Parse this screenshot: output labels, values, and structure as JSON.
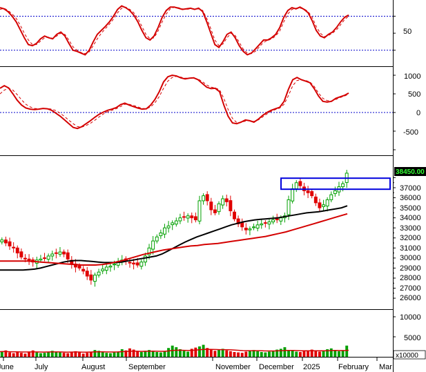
{
  "chart_data": [
    {
      "panel": "stochastic",
      "type": "line",
      "yticks": [
        50
      ],
      "guide_lines": [
        80,
        20
      ],
      "series": [
        {
          "color": "#d40000",
          "style": "solid",
          "values": [
            95,
            93,
            88,
            80,
            70,
            56,
            42,
            30,
            28,
            32,
            40,
            45,
            42,
            40,
            48,
            52,
            45,
            32,
            20,
            18,
            15,
            12,
            20,
            35,
            48,
            55,
            62,
            70,
            80,
            92,
            98,
            95,
            90,
            82,
            70,
            55,
            42,
            38,
            45,
            60,
            78,
            90,
            96,
            96,
            94,
            92,
            93,
            94,
            92,
            94,
            88,
            70,
            50,
            30,
            25,
            35,
            48,
            52,
            42,
            28,
            18,
            12,
            15,
            22,
            30,
            38,
            38,
            42,
            48,
            60,
            78,
            90,
            95,
            93,
            96,
            92,
            86,
            72,
            55,
            45,
            42,
            48,
            52,
            60,
            70,
            78,
            82
          ]
        },
        {
          "color": "#d40000",
          "style": "dashed",
          "values": [
            92,
            94,
            90,
            84,
            76,
            64,
            50,
            38,
            30,
            30,
            36,
            42,
            43,
            41,
            45,
            50,
            48,
            38,
            26,
            20,
            16,
            14,
            17,
            28,
            40,
            50,
            58,
            66,
            75,
            86,
            94,
            96,
            92,
            86,
            76,
            62,
            48,
            40,
            42,
            54,
            70,
            84,
            93,
            96,
            95,
            93,
            92,
            93,
            93,
            93,
            90,
            76,
            58,
            38,
            28,
            31,
            42,
            50,
            46,
            34,
            22,
            15,
            14,
            18,
            26,
            34,
            37,
            40,
            45,
            54,
            70,
            84,
            92,
            94,
            94,
            93,
            88,
            78,
            62,
            50,
            44,
            46,
            50,
            56,
            65,
            74,
            80
          ]
        }
      ]
    },
    {
      "panel": "macd",
      "type": "line",
      "yticks": [
        1000,
        500,
        0,
        -500
      ],
      "guide_lines": [
        0
      ],
      "series": [
        {
          "color": "#d40000",
          "style": "solid",
          "values": [
            650,
            720,
            660,
            500,
            330,
            200,
            120,
            90,
            80,
            90,
            110,
            100,
            60,
            -20,
            -100,
            -200,
            -300,
            -400,
            -430,
            -380,
            -300,
            -220,
            -130,
            -50,
            10,
            60,
            90,
            130,
            210,
            250,
            200,
            160,
            120,
            90,
            100,
            200,
            350,
            560,
            820,
            960,
            1000,
            980,
            930,
            900,
            920,
            930,
            880,
            780,
            680,
            640,
            650,
            560,
            200,
            -100,
            -280,
            -300,
            -260,
            -200,
            -220,
            -260,
            -180,
            -80,
            0,
            60,
            100,
            140,
            300,
            620,
            880,
            940,
            880,
            840,
            800,
            640,
            440,
            300,
            280,
            300,
            380,
            420,
            460,
            520
          ]
        },
        {
          "color": "#d40000",
          "style": "dashed",
          "values": [
            500,
            600,
            650,
            600,
            480,
            340,
            220,
            150,
            110,
            100,
            105,
            105,
            90,
            50,
            -20,
            -110,
            -210,
            -300,
            -380,
            -390,
            -350,
            -290,
            -210,
            -120,
            -40,
            20,
            60,
            100,
            160,
            220,
            220,
            190,
            150,
            110,
            100,
            150,
            260,
            430,
            650,
            840,
            940,
            970,
            950,
            920,
            920,
            925,
            900,
            830,
            740,
            680,
            660,
            610,
            380,
            80,
            -160,
            -270,
            -270,
            -230,
            -220,
            -240,
            -200,
            -120,
            -40,
            30,
            80,
            120,
            220,
            450,
            720,
            860,
            880,
            860,
            820,
            700,
            520,
            380,
            320,
            310,
            350,
            400,
            440,
            490
          ]
        }
      ]
    },
    {
      "panel": "price",
      "type": "candlestick",
      "yticks": [
        37000,
        36000,
        35000,
        34000,
        33000,
        32000,
        31000,
        30000,
        29000,
        28000,
        27000,
        26000
      ],
      "last_price_label": "38450.00",
      "last_price": 38450,
      "close": [
        31800,
        31500,
        31200,
        31000,
        30500,
        30100,
        29900,
        29700,
        29600,
        29800,
        29900,
        30000,
        30200,
        30400,
        30500,
        30600,
        30400,
        29900,
        29400,
        29100,
        29000,
        28700,
        28200,
        27800,
        28300,
        28600,
        28900,
        29100,
        29200,
        29400,
        29600,
        29800,
        29700,
        29500,
        29400,
        29300,
        29600,
        30200,
        31000,
        31700,
        32100,
        32500,
        33000,
        33200,
        33500,
        33700,
        34000,
        34100,
        34200,
        34000,
        33800,
        35700,
        36200,
        35700,
        34800,
        34500,
        35400,
        35900,
        35600,
        34700,
        33900,
        33400,
        33100,
        32800,
        32900,
        33100,
        33300,
        33400,
        33500,
        33600,
        33800,
        33800,
        34000,
        34200,
        35800,
        36900,
        37500,
        37200,
        36700,
        36500,
        36200,
        35500,
        35000,
        35300,
        35800,
        36300,
        36700,
        37100,
        37400,
        38450
      ],
      "series": [
        {
          "name": "",
          "color": "#000000",
          "values": [
            28800,
            28800,
            28800,
            28800,
            28800,
            28850,
            28900,
            29000,
            29150,
            29300,
            29450,
            29600,
            29700,
            29750,
            29750,
            29700,
            29650,
            29600,
            29550,
            29550,
            29550,
            29600,
            29700,
            29800,
            29900,
            30000,
            30100,
            30200,
            30400,
            30700,
            31000,
            31300,
            31600,
            31850,
            32100,
            32300,
            32500,
            32700,
            32900,
            33100,
            33300,
            33450,
            33600,
            33700,
            33800,
            33850,
            33900,
            33950,
            34000,
            34100,
            34200,
            34300,
            34400,
            34500,
            34550,
            34600,
            34700,
            34800,
            34900,
            35000,
            35200
          ]
        },
        {
          "name": "",
          "color": "#d40000",
          "values": [
            29700,
            29700,
            29700,
            29700,
            29700,
            29650,
            29600,
            29550,
            29500,
            29450,
            29400,
            29350,
            29300,
            29300,
            29300,
            29350,
            29450,
            29600,
            29750,
            29950,
            30150,
            30350,
            30500,
            30650,
            30800,
            30900,
            31000,
            31100,
            31200,
            31250,
            31350,
            31400,
            31450,
            31550,
            31650,
            31750,
            31850,
            31950,
            32050,
            32150,
            32300,
            32450,
            32600,
            32800,
            33000,
            33200,
            33400,
            33600,
            33800,
            34000,
            34200,
            34400
          ]
        }
      ],
      "highlight_box": {
        "y_from": 36850,
        "y_to": 37950
      }
    },
    {
      "panel": "volume",
      "type": "bar",
      "yticks": [
        10000,
        5000
      ],
      "unit_label": "x10000",
      "values": [
        1400,
        1600,
        1100,
        900,
        1200,
        1000,
        800,
        1300,
        1600,
        1100,
        900,
        1000,
        1200,
        1500,
        1300,
        1100,
        1000,
        900,
        1200,
        1400,
        1100,
        800,
        1000,
        1300,
        1700,
        1500,
        1200,
        1000,
        900,
        1100,
        1300,
        1900,
        1600,
        2100,
        1800,
        1400,
        1200,
        1500,
        1700,
        1400,
        1200,
        1100,
        1300,
        2200,
        2800,
        2400,
        1900,
        1500,
        1300,
        2000,
        2300,
        2600,
        3000,
        2200,
        1800,
        1500,
        1700,
        2000,
        1600,
        1400,
        1200,
        1100,
        1000,
        1300,
        1500,
        1700,
        1400,
        1200,
        1100,
        1300,
        1500,
        1800,
        2000,
        2400,
        1700,
        1500,
        1300,
        1200,
        1400,
        1600,
        1800,
        1500,
        1300,
        1600,
        1900,
        2100,
        1700,
        1400,
        1600,
        2800
      ],
      "ma_values": [
        1300,
        1320,
        1300,
        1260,
        1240,
        1220,
        1200,
        1210,
        1230,
        1220,
        1200,
        1190,
        1200,
        1220,
        1230,
        1220,
        1200,
        1180,
        1190,
        1210,
        1200,
        1180,
        1170,
        1190,
        1230,
        1250,
        1240,
        1220,
        1200,
        1200,
        1220,
        1280,
        1320,
        1380,
        1400,
        1390,
        1370,
        1380,
        1400,
        1410,
        1400,
        1380,
        1380,
        1460,
        1580,
        1640,
        1650,
        1620,
        1590,
        1620,
        1680,
        1760,
        1860,
        1880,
        1860,
        1820,
        1800,
        1800,
        1780,
        1740,
        1680,
        1620,
        1560,
        1540,
        1530,
        1540,
        1530,
        1500,
        1470,
        1460,
        1470,
        1500,
        1540,
        1600,
        1600,
        1580,
        1550,
        1520,
        1500,
        1500,
        1520,
        1520,
        1500,
        1510,
        1540,
        1580,
        1590,
        1570,
        1570,
        1640
      ]
    }
  ],
  "x_axis": {
    "labels": [
      "June",
      "July",
      "August",
      "September",
      "November",
      "December",
      "2025",
      "February",
      "Mar"
    ]
  }
}
